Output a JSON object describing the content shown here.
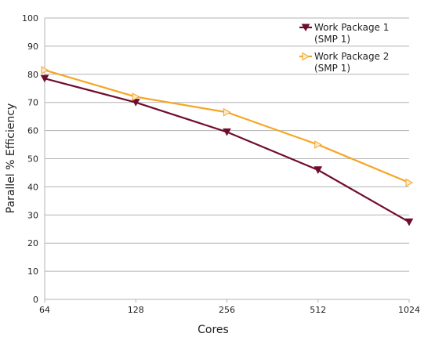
{
  "chart_data": {
    "type": "line",
    "categories": [
      "64",
      "128",
      "256",
      "512",
      "1024"
    ],
    "xlabel": "Cores",
    "ylabel": "Parallel % Efficiency",
    "ylim": [
      0,
      100
    ],
    "yticks": [
      0,
      10,
      20,
      30,
      40,
      50,
      60,
      70,
      80,
      90,
      100
    ],
    "grid": "horizontal",
    "legend_position": "top-right",
    "series": [
      {
        "name": "Work Package 1",
        "name_line2": "(SMP 1)",
        "values": [
          78.5,
          70,
          59.5,
          46,
          27.5
        ],
        "color": "#700d2c",
        "marker": "down-triangle"
      },
      {
        "name": "Work Package 2",
        "name_line2": "(SMP 1)",
        "values": [
          81.5,
          72,
          66.5,
          55,
          41.5
        ],
        "color": "#f5a623",
        "marker": "right-triangle"
      }
    ]
  }
}
